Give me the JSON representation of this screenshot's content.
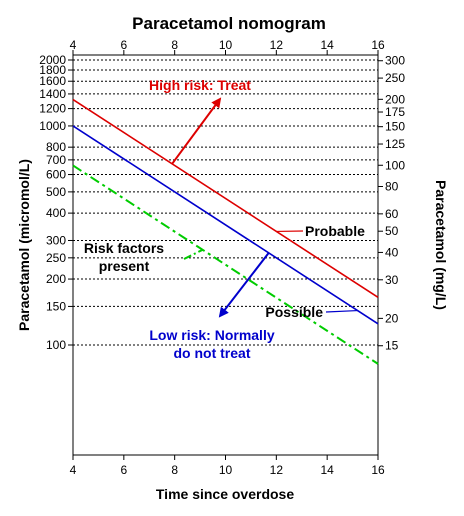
{
  "chart_data": {
    "type": "line",
    "title": "Paracetamol nomogram",
    "xlabel": "Time since overdose",
    "ylabel_left": "Paracetamol (micromol/L)",
    "ylabel_right": "Paracetamol (mg/L)",
    "xlim": [
      4,
      16
    ],
    "x_ticks": [
      4,
      6,
      8,
      10,
      12,
      14,
      16
    ],
    "y_scale": "log",
    "ylim_left": [
      40,
      2000
    ],
    "y_ticks_left": [
      100,
      150,
      200,
      250,
      300,
      400,
      500,
      600,
      700,
      800,
      1000,
      1200,
      1400,
      1600,
      1800,
      2000
    ],
    "y_ticks_right_mgL": [
      15,
      20,
      30,
      40,
      50,
      60,
      80,
      100,
      125,
      150,
      175,
      200,
      250,
      300
    ],
    "grid": "horizontal dashed",
    "series": [
      {
        "name": "Probable",
        "color": "#dd0000",
        "style": "solid",
        "x": [
          4,
          16
        ],
        "y": [
          1320,
          165
        ]
      },
      {
        "name": "Possible",
        "color": "#0000cc",
        "style": "solid",
        "x": [
          4,
          16
        ],
        "y": [
          1000,
          125
        ]
      },
      {
        "name": "Risk factors present",
        "color": "#00cc00",
        "style": "dashdot",
        "x": [
          4,
          16
        ],
        "y": [
          660,
          82
        ]
      }
    ],
    "annotations": [
      {
        "id": "high",
        "lines": [
          "High risk: Treat"
        ],
        "color": "#dd0000"
      },
      {
        "id": "probable",
        "lines": [
          "Probable"
        ],
        "color": "#000000"
      },
      {
        "id": "risk",
        "lines": [
          "Risk factors",
          "present"
        ],
        "color": "#000000"
      },
      {
        "id": "possible",
        "lines": [
          "Possible"
        ],
        "color": "#000000"
      },
      {
        "id": "low",
        "lines": [
          "Low risk: Normally",
          "do not treat"
        ],
        "color": "#0000cc"
      }
    ]
  }
}
